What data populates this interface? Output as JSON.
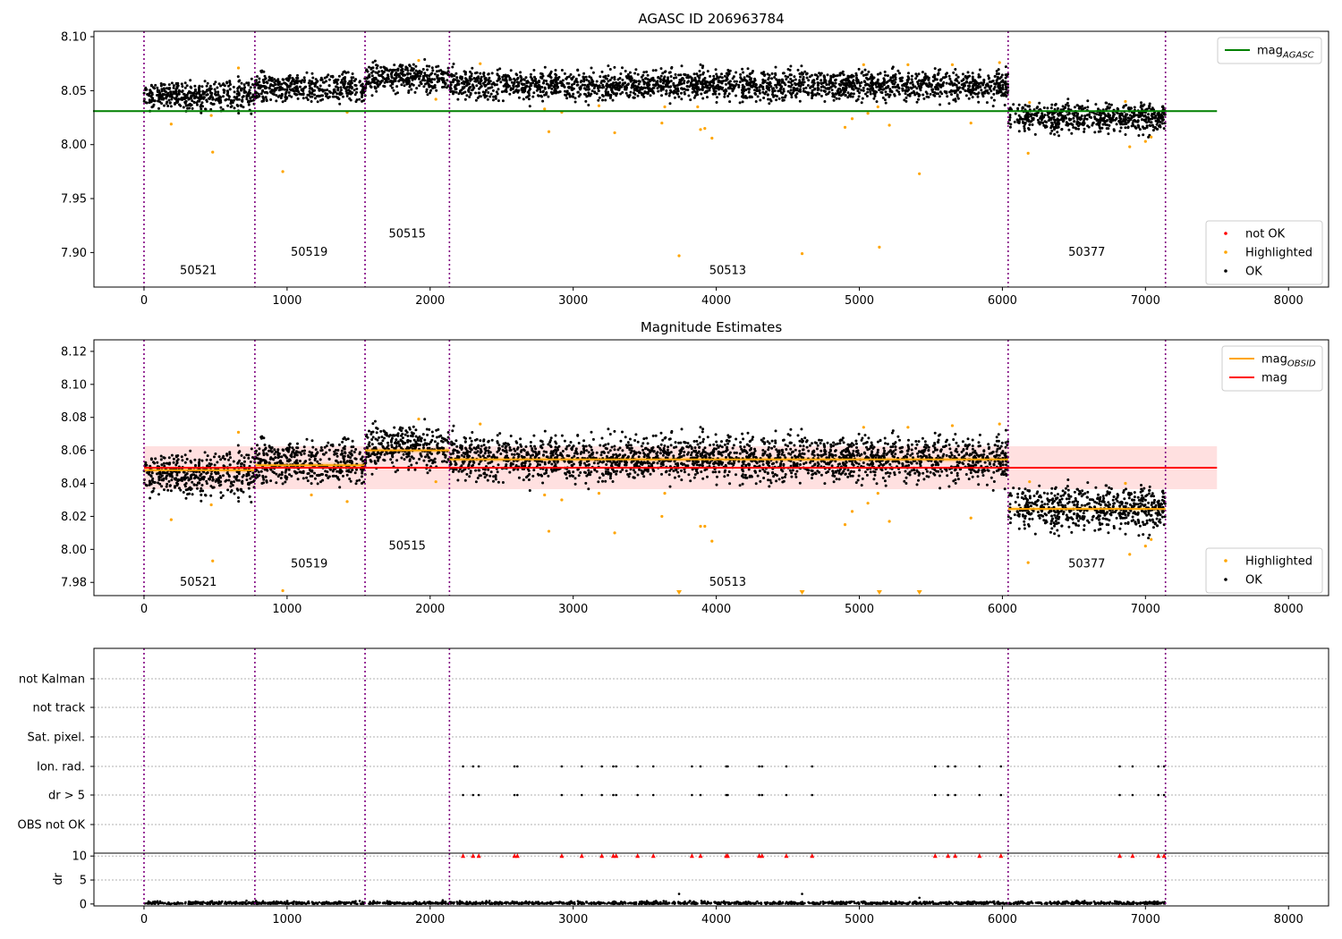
{
  "chart_data": [
    {
      "type": "scatter",
      "title": "AGASC ID 206963784",
      "xlim": [
        -350,
        8280
      ],
      "ylim": [
        7.868,
        8.105
      ],
      "x_ticks": [
        "0",
        "1000",
        "2000",
        "3000",
        "4000",
        "5000",
        "6000",
        "7000",
        "8000"
      ],
      "y_ticks": [
        "7.90",
        "7.95",
        "8.00",
        "8.05",
        "8.10"
      ],
      "obs_boundaries": [
        0,
        775,
        1545,
        2135,
        6040,
        7140
      ],
      "obs_labels": [
        {
          "text": "50521",
          "x": 380,
          "y": 7.88
        },
        {
          "text": "50519",
          "x": 1155,
          "y": 7.897
        },
        {
          "text": "50515",
          "x": 1840,
          "y": 7.914
        },
        {
          "text": "50513",
          "x": 4080,
          "y": 7.88
        },
        {
          "text": "50377",
          "x": 6590,
          "y": 7.897
        }
      ],
      "reference_line": {
        "name": "mag",
        "subscript": "AGASC",
        "value": 8.031,
        "x_range": [
          0,
          7500
        ],
        "color": "#008000"
      },
      "segment_levels": [
        {
          "x0": 0,
          "x1": 775,
          "y": 8.046
        },
        {
          "x0": 775,
          "x1": 1545,
          "y": 8.053
        },
        {
          "x0": 1545,
          "x1": 2135,
          "y": 8.062
        },
        {
          "x0": 2135,
          "x1": 6040,
          "y": 8.055
        },
        {
          "x0": 6040,
          "x1": 7140,
          "y": 8.025
        }
      ],
      "scatter_spread": 0.0065,
      "highlighted_points": [
        [
          190,
          8.019
        ],
        [
          470,
          8.027
        ],
        [
          480,
          7.993
        ],
        [
          660,
          8.071
        ],
        [
          970,
          7.975
        ],
        [
          1420,
          8.03
        ],
        [
          1920,
          8.078
        ],
        [
          2040,
          8.042
        ],
        [
          2350,
          8.075
        ],
        [
          2800,
          8.033
        ],
        [
          2830,
          8.012
        ],
        [
          2920,
          8.03
        ],
        [
          3180,
          8.036
        ],
        [
          3290,
          8.011
        ],
        [
          3620,
          8.02
        ],
        [
          3640,
          8.035
        ],
        [
          3740,
          7.897
        ],
        [
          3870,
          8.035
        ],
        [
          3890,
          8.014
        ],
        [
          3920,
          8.015
        ],
        [
          3970,
          8.006
        ],
        [
          4600,
          7.899
        ],
        [
          4900,
          8.016
        ],
        [
          4950,
          8.024
        ],
        [
          5030,
          8.074
        ],
        [
          5060,
          8.029
        ],
        [
          5130,
          8.035
        ],
        [
          5140,
          7.905
        ],
        [
          5210,
          8.018
        ],
        [
          5340,
          8.074
        ],
        [
          5420,
          7.973
        ],
        [
          5650,
          8.074
        ],
        [
          5780,
          8.02
        ],
        [
          5980,
          8.076
        ],
        [
          6180,
          7.992
        ],
        [
          6190,
          8.039
        ],
        [
          6860,
          8.04
        ],
        [
          6890,
          7.998
        ],
        [
          7000,
          8.003
        ],
        [
          7040,
          8.007
        ]
      ],
      "legends": [
        {
          "position": "top-right",
          "entries": [
            {
              "label": "mag",
              "subscript": "AGASC",
              "color": "#008000",
              "marker": "line"
            }
          ]
        },
        {
          "position": "bottom-right",
          "entries": [
            {
              "label": "not OK",
              "color": "#ff0000",
              "marker": "dot"
            },
            {
              "label": "Highlighted",
              "color": "#ffa500",
              "marker": "dot"
            },
            {
              "label": "OK",
              "color": "#000000",
              "marker": "dot"
            }
          ]
        }
      ]
    },
    {
      "type": "scatter",
      "title": "Magnitude Estimates",
      "xlim": [
        -350,
        8280
      ],
      "ylim": [
        7.972,
        8.127
      ],
      "x_ticks": [
        "0",
        "1000",
        "2000",
        "3000",
        "4000",
        "5000",
        "6000",
        "7000",
        "8000"
      ],
      "y_ticks": [
        "7.98",
        "8.00",
        "8.02",
        "8.04",
        "8.06",
        "8.08",
        "8.10",
        "8.12"
      ],
      "obs_boundaries": [
        0,
        775,
        1545,
        2135,
        6040,
        7140
      ],
      "obs_labels": [
        {
          "text": "50521",
          "x": 380,
          "y": 7.978
        },
        {
          "text": "50519",
          "x": 1155,
          "y": 7.989
        },
        {
          "text": "50515",
          "x": 1840,
          "y": 8.0
        },
        {
          "text": "50513",
          "x": 4080,
          "y": 7.978
        },
        {
          "text": "50377",
          "x": 6590,
          "y": 7.989
        }
      ],
      "mag_line": {
        "name": "mag",
        "value": 8.0495,
        "x_range": [
          0,
          7500
        ],
        "band": [
          8.0365,
          8.0625
        ],
        "color": "#ff0000"
      },
      "obsid_levels": [
        {
          "x0": 0,
          "x1": 775,
          "y": 8.048
        },
        {
          "x0": 775,
          "x1": 1545,
          "y": 8.051
        },
        {
          "x0": 1545,
          "x1": 2135,
          "y": 8.06
        },
        {
          "x0": 2135,
          "x1": 6040,
          "y": 8.0545
        },
        {
          "x0": 6040,
          "x1": 7140,
          "y": 8.0245
        }
      ],
      "segment_levels": [
        {
          "x0": 0,
          "x1": 775,
          "y": 8.046
        },
        {
          "x0": 775,
          "x1": 1545,
          "y": 8.053
        },
        {
          "x0": 1545,
          "x1": 2135,
          "y": 8.062
        },
        {
          "x0": 2135,
          "x1": 6040,
          "y": 8.055
        },
        {
          "x0": 6040,
          "x1": 7140,
          "y": 8.025
        }
      ],
      "scatter_spread": 0.0065,
      "highlighted_points": [
        [
          190,
          8.018
        ],
        [
          470,
          8.027
        ],
        [
          480,
          7.993
        ],
        [
          660,
          8.071
        ],
        [
          970,
          7.975
        ],
        [
          1170,
          8.033
        ],
        [
          1420,
          8.029
        ],
        [
          1920,
          8.079
        ],
        [
          2040,
          8.041
        ],
        [
          2350,
          8.076
        ],
        [
          2800,
          8.033
        ],
        [
          2830,
          8.011
        ],
        [
          2920,
          8.03
        ],
        [
          3180,
          8.034
        ],
        [
          3290,
          8.01
        ],
        [
          3620,
          8.02
        ],
        [
          3640,
          8.034
        ],
        [
          3890,
          8.014
        ],
        [
          3920,
          8.014
        ],
        [
          3970,
          8.005
        ],
        [
          4900,
          8.015
        ],
        [
          4950,
          8.023
        ],
        [
          5030,
          8.074
        ],
        [
          5060,
          8.028
        ],
        [
          5130,
          8.034
        ],
        [
          5210,
          8.017
        ],
        [
          5340,
          8.074
        ],
        [
          5650,
          8.075
        ],
        [
          5780,
          8.019
        ],
        [
          5980,
          8.076
        ],
        [
          6180,
          7.992
        ],
        [
          6190,
          8.041
        ],
        [
          6860,
          8.04
        ],
        [
          6890,
          7.997
        ],
        [
          7000,
          8.002
        ],
        [
          7040,
          8.006
        ]
      ],
      "offscale_low_x": [
        3740,
        4600,
        5140,
        5420
      ],
      "legends": [
        {
          "position": "top-right",
          "entries": [
            {
              "label": "mag",
              "subscript": "OBSID",
              "color": "#ffa500",
              "marker": "line"
            },
            {
              "label": "mag",
              "color": "#ff0000",
              "marker": "line"
            }
          ]
        },
        {
          "position": "bottom-right",
          "entries": [
            {
              "label": "Highlighted",
              "color": "#ffa500",
              "marker": "dot"
            },
            {
              "label": "OK",
              "color": "#000000",
              "marker": "dot"
            }
          ]
        }
      ]
    },
    {
      "type": "scatter",
      "title": "",
      "xlim": [
        -350,
        8280
      ],
      "categories": [
        "not Kalman",
        "not track",
        "Sat. pixel.",
        "Ion. rad.",
        "dr > 5",
        "OBS not OK"
      ],
      "obs_boundaries": [
        0,
        775,
        1545,
        2135,
        6040,
        7140
      ],
      "flagged_x": {
        "Ion. rad.": [
          2230,
          2300,
          2340,
          2590,
          2610,
          2920,
          3060,
          3200,
          3280,
          3300,
          3450,
          3560,
          3830,
          3890,
          4070,
          4080,
          4300,
          4320,
          4490,
          4670,
          5530,
          5620,
          5670,
          5840,
          5990,
          6820,
          6910,
          7090,
          7130
        ],
        "dr > 5": [
          2230,
          2300,
          2340,
          2590,
          2610,
          2920,
          3060,
          3200,
          3280,
          3300,
          3450,
          3560,
          3830,
          3890,
          4070,
          4080,
          4300,
          4320,
          4490,
          4670,
          5530,
          5620,
          5670,
          5840,
          5990,
          6820,
          6910,
          7090,
          7130
        ]
      }
    },
    {
      "type": "scatter",
      "title": "",
      "xlim": [
        -350,
        8280
      ],
      "ylim": [
        -0.4,
        10.6
      ],
      "ylabel": "dr",
      "x_ticks": [
        "0",
        "1000",
        "2000",
        "3000",
        "4000",
        "5000",
        "6000",
        "7000",
        "8000"
      ],
      "y_ticks": [
        "0",
        "5",
        "10"
      ],
      "obs_boundaries": [
        0,
        775,
        1545,
        2135,
        6040,
        7140
      ],
      "clipped_x": [
        2230,
        2300,
        2340,
        2590,
        2610,
        2920,
        3060,
        3200,
        3280,
        3300,
        3450,
        3560,
        3830,
        3890,
        4070,
        4080,
        4300,
        4320,
        4490,
        4670,
        5530,
        5620,
        5670,
        5840,
        5990,
        6820,
        6910,
        7090,
        7130
      ],
      "outliers": [
        [
          3740,
          2.1
        ],
        [
          4600,
          2.1
        ],
        [
          5420,
          1.3
        ]
      ]
    }
  ]
}
